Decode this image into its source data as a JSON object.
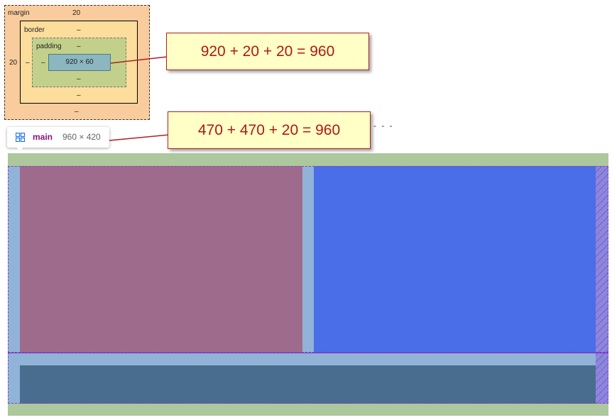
{
  "box_model": {
    "margin_label": "margin",
    "margin_top": "20",
    "margin_left": "20",
    "margin_right": "",
    "margin_bottom": "–",
    "border_label": "border",
    "border_top": "–",
    "border_left": "–",
    "border_bottom": "–",
    "padding_label": "padding",
    "padding_top": "–",
    "padding_left": "–",
    "padding_bottom": "–",
    "content_size": "920 × 60"
  },
  "callouts": {
    "top": "920 + 20 + 20 = 960",
    "bottom": "470 + 470 + 20 = 960"
  },
  "tooltip": {
    "icon": "grid-layout-icon",
    "tag": "main",
    "size": "960 × 420"
  },
  "dashes": "- - -",
  "colors": {
    "margin_box": "#f9cc9d",
    "border_box": "#fddd9b",
    "padding_box": "#c3d08b",
    "content_box": "#8cb6c0",
    "page_margin": "#acc89c",
    "page_padding": "#91b3d7",
    "left_column": "#9f6b8d",
    "right_column": "#4a6de8",
    "footer_block": "#496d8e",
    "overflow_hatch": "#8d86dc",
    "callout_text": "#b01818",
    "callout_bg": "#ffffc6"
  }
}
